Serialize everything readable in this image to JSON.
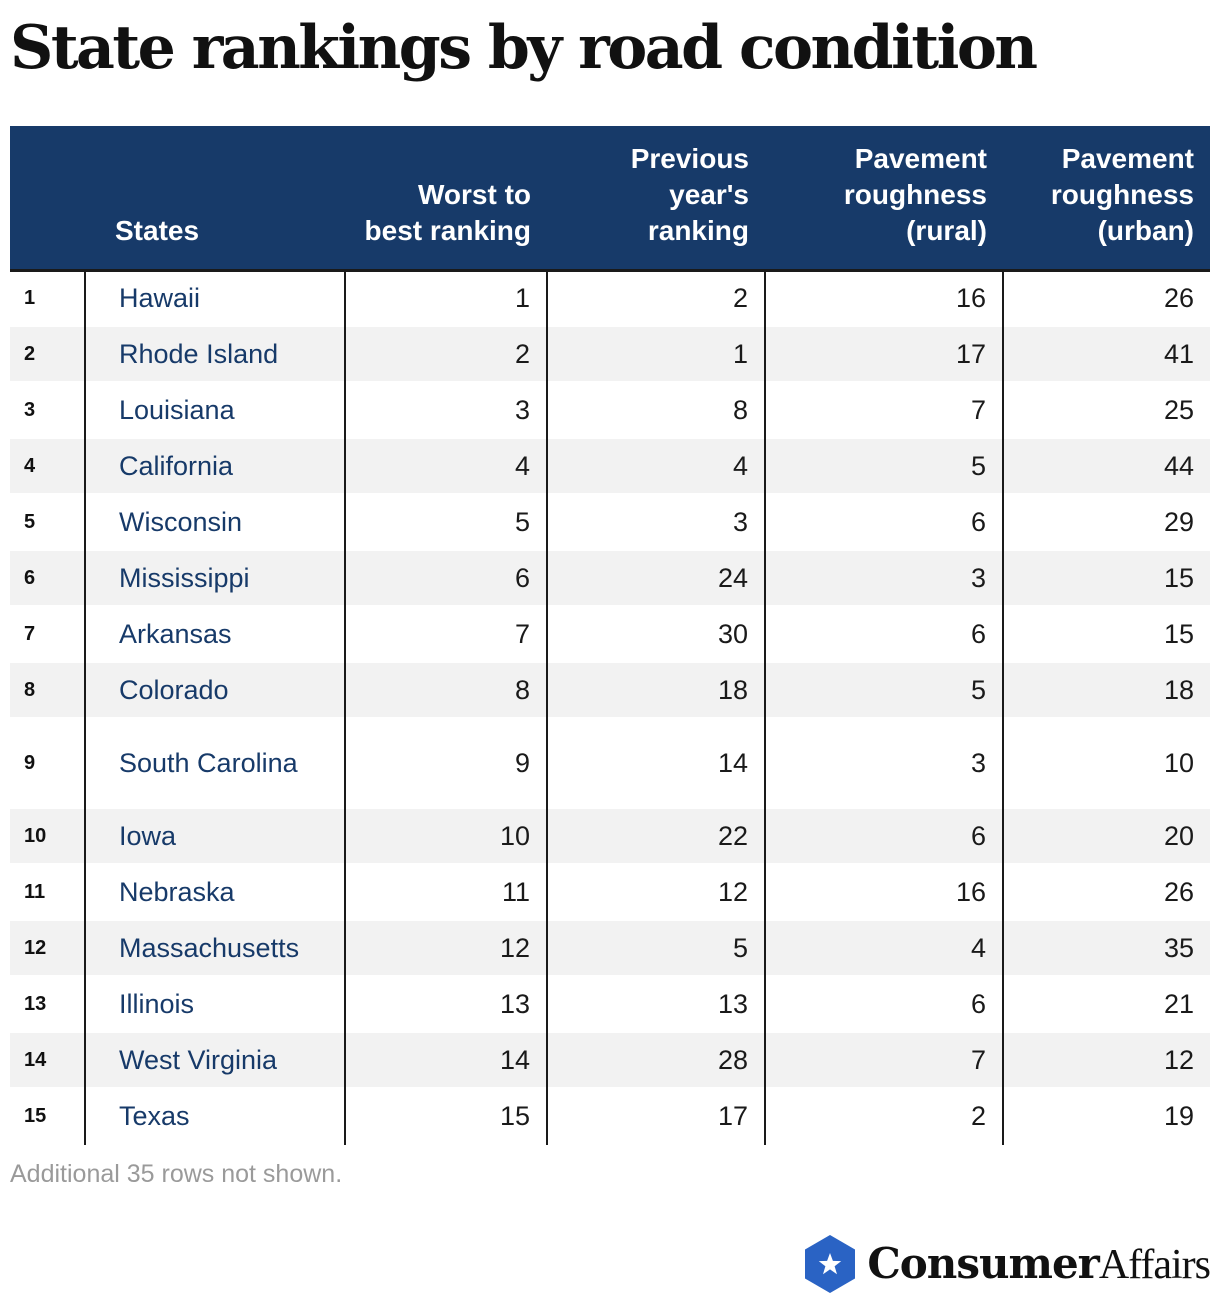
{
  "title": "State rankings by road condition",
  "columns": {
    "states": "States",
    "worst_to_best": "Worst to best ranking",
    "previous_year": "Previous year's ranking",
    "rough_rural": "Pavement roughness (rural)",
    "rough_urban": "Pavement roughness (urban)"
  },
  "rows": [
    {
      "rank": "1",
      "state": "Hawaii",
      "worst": "1",
      "prev": "2",
      "rural": "16",
      "urban": "26"
    },
    {
      "rank": "2",
      "state": "Rhode Island",
      "worst": "2",
      "prev": "1",
      "rural": "17",
      "urban": "41"
    },
    {
      "rank": "3",
      "state": "Louisiana",
      "worst": "3",
      "prev": "8",
      "rural": "7",
      "urban": "25"
    },
    {
      "rank": "4",
      "state": "California",
      "worst": "4",
      "prev": "4",
      "rural": "5",
      "urban": "44"
    },
    {
      "rank": "5",
      "state": "Wisconsin",
      "worst": "5",
      "prev": "3",
      "rural": "6",
      "urban": "29"
    },
    {
      "rank": "6",
      "state": "Mississippi",
      "worst": "6",
      "prev": "24",
      "rural": "3",
      "urban": "15"
    },
    {
      "rank": "7",
      "state": "Arkansas",
      "worst": "7",
      "prev": "30",
      "rural": "6",
      "urban": "15"
    },
    {
      "rank": "8",
      "state": "Colorado",
      "worst": "8",
      "prev": "18",
      "rural": "5",
      "urban": "18"
    },
    {
      "rank": "9",
      "state": "South Carolina",
      "worst": "9",
      "prev": "14",
      "rural": "3",
      "urban": "10"
    },
    {
      "rank": "10",
      "state": "Iowa",
      "worst": "10",
      "prev": "22",
      "rural": "6",
      "urban": "20"
    },
    {
      "rank": "11",
      "state": "Nebraska",
      "worst": "11",
      "prev": "12",
      "rural": "16",
      "urban": "26"
    },
    {
      "rank": "12",
      "state": "Massachusetts",
      "worst": "12",
      "prev": "5",
      "rural": "4",
      "urban": "35"
    },
    {
      "rank": "13",
      "state": "Illinois",
      "worst": "13",
      "prev": "13",
      "rural": "6",
      "urban": "21"
    },
    {
      "rank": "14",
      "state": "West Virginia",
      "worst": "14",
      "prev": "28",
      "rural": "7",
      "urban": "12"
    },
    {
      "rank": "15",
      "state": "Texas",
      "worst": "15",
      "prev": "17",
      "rural": "2",
      "urban": "19"
    }
  ],
  "footnote": "Additional 35 rows not shown.",
  "brand": {
    "name_bold": "Consumer",
    "name_light": "Affairs",
    "icon": "star-hexagon-icon",
    "color": "#2a63c4"
  },
  "colors": {
    "header_bg": "#173a69",
    "state_text": "#173a69",
    "zebra": "#f2f2f2"
  }
}
